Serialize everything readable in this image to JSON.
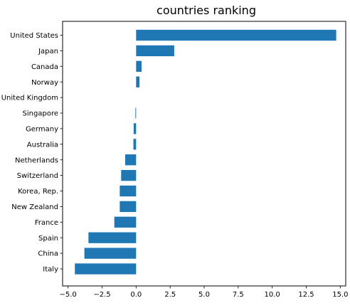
{
  "chart_data": {
    "type": "bar",
    "orientation": "horizontal",
    "title": "countries ranking",
    "xlabel": "",
    "ylabel": "",
    "categories": [
      "United States",
      "Japan",
      "Canada",
      "Norway",
      "United Kingdom",
      "Singapore",
      "Germany",
      "Australia",
      "Netherlands",
      "Switzerland",
      "Korea, Rep.",
      "New Zealand",
      "France",
      "Spain",
      "China",
      "Italy"
    ],
    "values": [
      14.7,
      2.8,
      0.4,
      0.25,
      0.0,
      -0.05,
      -0.18,
      -0.2,
      -0.8,
      -1.1,
      -1.2,
      -1.2,
      -1.6,
      -3.5,
      -3.8,
      -4.5
    ],
    "xlim": [
      -5.4,
      15.4
    ],
    "xticks": [
      -5.0,
      -2.5,
      0.0,
      2.5,
      5.0,
      7.5,
      10.0,
      12.5,
      15.0
    ],
    "xtick_labels": [
      "−5.0",
      "−2.5",
      "0.0",
      "2.5",
      "5.0",
      "7.5",
      "10.0",
      "12.5",
      "15.0"
    ],
    "grid": false,
    "legend": "none",
    "bar_color": "#1f77b4"
  }
}
